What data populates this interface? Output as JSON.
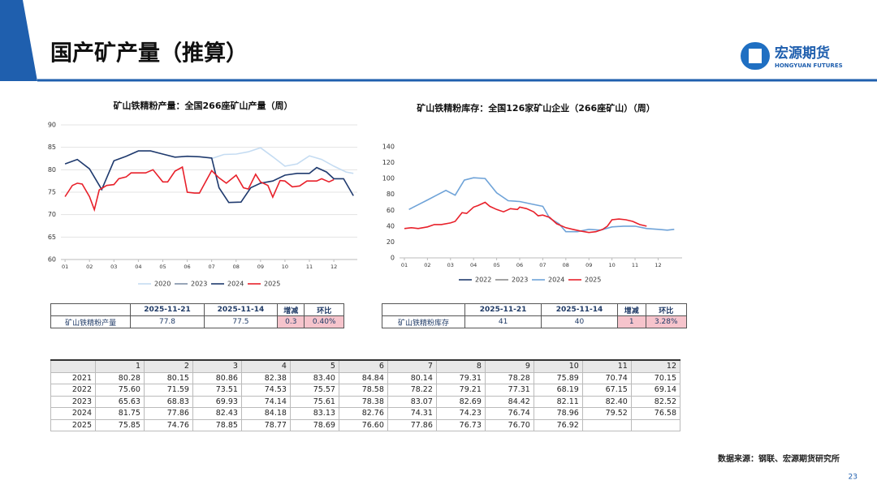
{
  "header": {
    "title": "国产矿产量（推算）",
    "logo": "宏源期货",
    "logo_sub": "HONGYUAN FUTURES"
  },
  "chart_data": [
    {
      "type": "line",
      "title": "矿山铁精粉产量：全国266座矿山产量（周）",
      "xlim": [
        0.83,
        12.96
      ],
      "ylim": [
        60,
        90
      ],
      "yticks": [
        60,
        65,
        70,
        75,
        80,
        85,
        90
      ],
      "xticks": [
        {
          "value": 1,
          "label": "01"
        },
        {
          "value": 2,
          "label": "02"
        },
        {
          "value": 3,
          "label": "03"
        },
        {
          "value": 4,
          "label": "04"
        },
        {
          "value": 5,
          "label": "05"
        },
        {
          "value": 6,
          "label": "06"
        },
        {
          "value": 7,
          "label": "07"
        },
        {
          "value": 8,
          "label": "08"
        },
        {
          "value": 9,
          "label": "09"
        },
        {
          "value": 10,
          "label": "10"
        },
        {
          "value": 11,
          "label": "11"
        },
        {
          "value": 12,
          "label": "12"
        }
      ],
      "grid": true,
      "legend": "bottom",
      "series": [
        {
          "name": "2020",
          "color": "#c5dcf2",
          "x": [
            7.0,
            7.5,
            8.0,
            8.5,
            9.0,
            9.5,
            10.0,
            10.5,
            11.0,
            11.5,
            12.0,
            12.5,
            12.8
          ],
          "values": [
            82.5,
            83.4,
            83.5,
            84,
            84.9,
            82.9,
            80.8,
            81.3,
            83.1,
            82.3,
            80.8,
            79.5,
            79.2
          ]
        },
        {
          "name": "2023",
          "color": "#7f8fa6",
          "x": [],
          "values": []
        },
        {
          "name": "2024",
          "color": "#1f3a6e",
          "x": [
            1.0,
            1.5,
            2.0,
            2.5,
            3.0,
            3.5,
            4.0,
            4.5,
            5.0,
            5.5,
            6.0,
            6.5,
            7.0,
            7.3,
            7.7,
            8.2,
            8.6,
            9.0,
            9.5,
            10.0,
            10.5,
            11.0,
            11.3,
            11.7,
            12.0,
            12.4,
            12.8
          ],
          "values": [
            81.3,
            82.3,
            80.2,
            75.6,
            82.0,
            83.0,
            84.2,
            84.2,
            83.5,
            82.8,
            83.0,
            82.9,
            82.6,
            76,
            72.7,
            72.8,
            76,
            77,
            77.5,
            78.8,
            79.2,
            79.2,
            80.5,
            79.5,
            78,
            78,
            74.2
          ]
        },
        {
          "name": "2025",
          "color": "#e8202a",
          "x": [
            1.0,
            1.3,
            1.5,
            1.7,
            2.0,
            2.2,
            2.4,
            2.7,
            3.0,
            3.2,
            3.5,
            3.7,
            4.0,
            4.3,
            4.6,
            5.0,
            5.2,
            5.5,
            5.8,
            6.0,
            6.3,
            6.5,
            7.0,
            7.3,
            7.6,
            8.0,
            8.3,
            8.5,
            8.8,
            9.0,
            9.3,
            9.5,
            9.8,
            10.0,
            10.3,
            10.6,
            10.9,
            11.3,
            11.5,
            11.8,
            12.0
          ],
          "values": [
            74,
            76.5,
            77,
            76.8,
            74,
            71.1,
            75.5,
            76.5,
            76.7,
            78,
            78.4,
            79.3,
            79.3,
            79.3,
            80,
            77.3,
            77.3,
            79.7,
            80.6,
            75,
            74.8,
            74.8,
            79.8,
            78.2,
            77,
            78.8,
            76,
            75.7,
            79,
            77.3,
            76.5,
            73.9,
            77.6,
            77.5,
            76.2,
            76.4,
            77.5,
            77.5,
            78,
            77.3,
            77.8
          ]
        }
      ]
    },
    {
      "type": "line",
      "title": "矿山铁精粉库存：全国126家矿山企业（266座矿山）（周）",
      "xlim": [
        0.79,
        13.04
      ],
      "ylim": [
        0,
        140
      ],
      "yticks": [
        0,
        20,
        40,
        60,
        80,
        100,
        120,
        140
      ],
      "xticks": [
        {
          "value": 1,
          "label": "01"
        },
        {
          "value": 2,
          "label": "02"
        },
        {
          "value": 3,
          "label": "03"
        },
        {
          "value": 4,
          "label": "04"
        },
        {
          "value": 5,
          "label": "05"
        },
        {
          "value": 6,
          "label": "06"
        },
        {
          "value": 7,
          "label": "07"
        },
        {
          "value": 8,
          "label": "08"
        },
        {
          "value": 9,
          "label": "09"
        },
        {
          "value": 10,
          "label": "10"
        },
        {
          "value": 11,
          "label": "11"
        },
        {
          "value": 12,
          "label": "12"
        }
      ],
      "grid": false,
      "legend": "bottom",
      "series": [
        {
          "name": "2022",
          "color": "#1f3a6e",
          "x": [],
          "values": []
        },
        {
          "name": "2023",
          "color": "#8c8c8c",
          "x": [],
          "values": []
        },
        {
          "name": "2024",
          "color": "#6fa3d8",
          "x": [
            1.2,
            1.6,
            2.0,
            2.4,
            2.8,
            3.2,
            3.6,
            4.0,
            4.5,
            5.0,
            5.5,
            6.0,
            6.5,
            7.0,
            7.3,
            7.7,
            8.0,
            8.5,
            9.0,
            9.5,
            10.0,
            10.5,
            11.0,
            11.5,
            12.0,
            12.4,
            12.7
          ],
          "values": [
            61,
            67,
            73,
            79,
            85,
            79,
            98,
            101,
            100,
            82,
            72,
            71,
            68,
            65,
            50,
            43,
            33,
            33,
            36,
            35,
            39,
            40,
            40,
            37,
            36,
            35,
            36
          ]
        },
        {
          "name": "2025",
          "color": "#e8202a",
          "x": [
            1.0,
            1.3,
            1.6,
            2.0,
            2.3,
            2.6,
            3.0,
            3.2,
            3.5,
            3.7,
            4.0,
            4.2,
            4.5,
            4.7,
            5.0,
            5.3,
            5.6,
            5.9,
            6.0,
            6.3,
            6.6,
            6.8,
            7.0,
            7.3,
            7.6,
            8.0,
            8.3,
            8.6,
            9.0,
            9.3,
            9.6,
            9.8,
            10.0,
            10.3,
            10.6,
            10.9,
            11.2,
            11.5
          ],
          "values": [
            37,
            38,
            37,
            39,
            42,
            42,
            44,
            46,
            57,
            56,
            64,
            66,
            70,
            65,
            61,
            58,
            62,
            61,
            64,
            62,
            58,
            53,
            54,
            51,
            43,
            38,
            36,
            34,
            32,
            33,
            36,
            40,
            48,
            49,
            48,
            46,
            42,
            40
          ]
        }
      ]
    }
  ],
  "table1": {
    "header": [
      "2025-11-21",
      "2025-11-14",
      "增减",
      "环比"
    ],
    "row": [
      "矿山铁精粉产量",
      "77.8",
      "77.5",
      "0.3",
      "0.40%"
    ]
  },
  "table2": {
    "header": [
      "2025-11-21",
      "2025-11-14",
      "增减",
      "环比"
    ],
    "row": [
      "矿山铁精粉库存",
      "41",
      "40",
      "1",
      "3.28%"
    ]
  },
  "table3": {
    "header": [
      "1",
      "2",
      "3",
      "4",
      "5",
      "6",
      "7",
      "8",
      "9",
      "10",
      "11",
      "12"
    ],
    "rows": [
      [
        "2021",
        "80.28",
        "80.15",
        "80.86",
        "82.38",
        "83.40",
        "84.84",
        "80.14",
        "79.31",
        "78.28",
        "75.89",
        "70.74",
        "70.15"
      ],
      [
        "2022",
        "75.60",
        "71.59",
        "73.51",
        "74.53",
        "75.57",
        "78.58",
        "78.22",
        "79.21",
        "77.31",
        "68.19",
        "67.15",
        "69.14"
      ],
      [
        "2023",
        "65.63",
        "68.83",
        "69.93",
        "74.14",
        "75.61",
        "78.38",
        "83.07",
        "82.69",
        "84.42",
        "82.11",
        "82.40",
        "82.52"
      ],
      [
        "2024",
        "81.75",
        "77.86",
        "82.43",
        "84.18",
        "83.13",
        "82.76",
        "74.31",
        "74.23",
        "76.74",
        "78.96",
        "79.52",
        "76.58"
      ],
      [
        "2025",
        "75.85",
        "74.76",
        "78.85",
        "78.77",
        "78.69",
        "76.60",
        "77.86",
        "76.73",
        "76.70",
        "76.92"
      ]
    ]
  },
  "footer": {
    "source": "数据来源：钢联、宏源期货研究所",
    "page": "23"
  }
}
